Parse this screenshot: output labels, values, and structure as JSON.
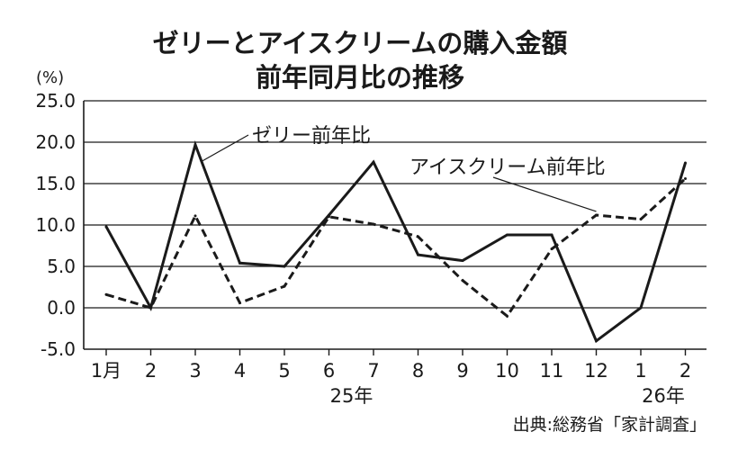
{
  "chart_data": {
    "type": "line",
    "title_lines": [
      "ゼリーとアイスクリームの購入金額",
      "前年同月比の推移"
    ],
    "y_unit": "(%)",
    "categories": [
      "1月",
      "2",
      "3",
      "4",
      "5",
      "6",
      "7",
      "8",
      "9",
      "10",
      "11",
      "12",
      "1",
      "2"
    ],
    "year_labels": [
      {
        "category_index": 5,
        "label": "25年"
      },
      {
        "category_index": 12,
        "label": "26年"
      }
    ],
    "ylim": [
      -5,
      25
    ],
    "yticks": [
      "25.0",
      "20.0",
      "15.0",
      "10.0",
      "5.0",
      "0.0",
      "-5.0"
    ],
    "ytick_values": [
      25,
      20,
      15,
      10,
      5,
      0,
      -5
    ],
    "grid": true,
    "series": [
      {
        "name": "ゼリー前年比",
        "style": "solid",
        "color": "#1a1a1a",
        "values": [
          9.8,
          0.0,
          19.7,
          5.4,
          5.0,
          11.2,
          17.6,
          6.4,
          5.7,
          8.8,
          8.8,
          -4.0,
          0.0,
          17.5
        ]
      },
      {
        "name": "アイスクリーム前年比",
        "style": "dashed",
        "color": "#1a1a1a",
        "values": [
          1.6,
          0.0,
          11.1,
          0.6,
          2.6,
          11.0,
          10.1,
          8.6,
          3.3,
          -1.0,
          7.1,
          11.2,
          10.7,
          15.6
        ]
      }
    ],
    "annotations": [
      {
        "text": "ゼリー前年比",
        "series_index": 0,
        "point_index": 2
      },
      {
        "text": "アイスクリーム前年比",
        "series_index": 1,
        "point_index": 11
      }
    ],
    "source": "出典:総務省「家計調査」"
  }
}
